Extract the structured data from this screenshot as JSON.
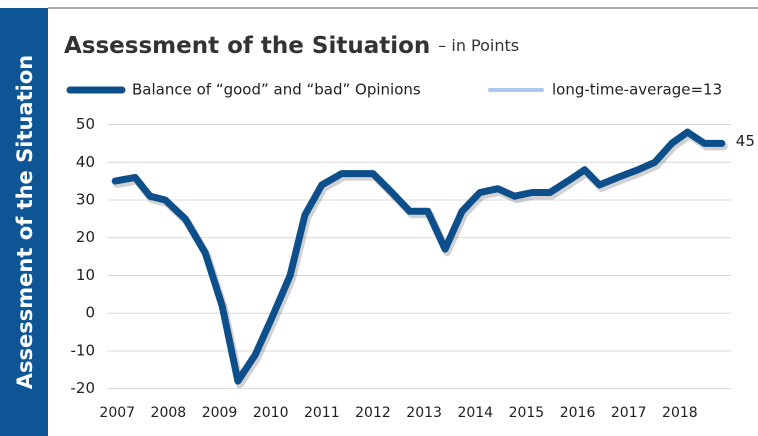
{
  "side_label": "Assessment of the Situation",
  "chart_data": {
    "type": "line",
    "title": "Assessment of the Situation",
    "subtitle": "– in Points",
    "x": [
      2006.96,
      2007.35,
      2007.64,
      2007.94,
      2008.33,
      2008.72,
      2009.05,
      2009.36,
      2009.7,
      2010.03,
      2010.38,
      2010.67,
      2011.0,
      2011.39,
      2011.71,
      2012.0,
      2012.37,
      2012.72,
      2013.07,
      2013.41,
      2013.74,
      2014.09,
      2014.44,
      2014.77,
      2015.11,
      2015.46,
      2015.81,
      2016.14,
      2016.43,
      2016.79,
      2017.18,
      2017.51,
      2017.84,
      2018.15,
      2018.48,
      2018.82
    ],
    "series": [
      {
        "name": "Balance of “good” and “bad” Opinions",
        "color": "#0d4f8b",
        "values": [
          35,
          36,
          31,
          30,
          25,
          16,
          2,
          -18,
          -11,
          -1,
          10,
          26,
          34,
          37,
          37,
          37,
          32,
          27,
          27,
          17,
          27,
          32,
          33,
          31,
          32,
          32,
          35,
          38,
          34,
          36,
          38,
          40,
          45,
          48,
          45,
          45
        ]
      },
      {
        "name": "long-time-average=13",
        "color": "#a9c8ec"
      }
    ],
    "xlim": [
      2006.8,
      2019.0
    ],
    "xticks": [
      2007,
      2008,
      2009,
      2010,
      2011,
      2012,
      2013,
      2014,
      2015,
      2016,
      2017,
      2018
    ],
    "ylim": [
      -23,
      52
    ],
    "yticks": [
      -20,
      -10,
      0,
      10,
      20,
      30,
      40,
      50
    ],
    "grid": true
  }
}
